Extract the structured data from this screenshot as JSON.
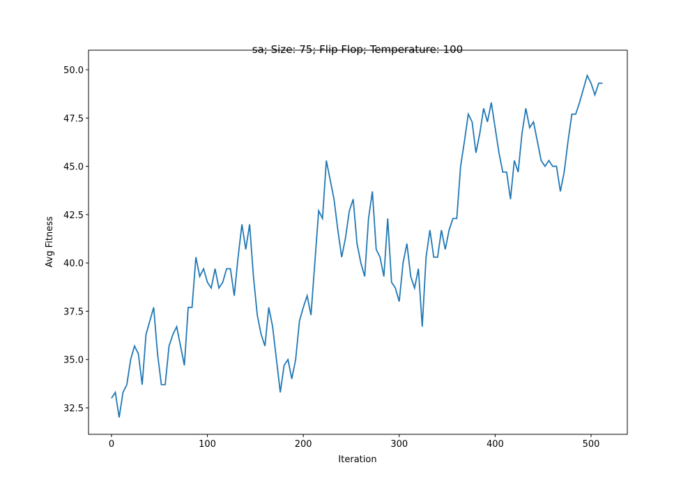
{
  "chart_data": {
    "type": "line",
    "title": "sa; Size: 75; Flip Flop; Temperature: 100",
    "x_label": "Iteration",
    "y_label": "Avg Fitness",
    "x": [
      0,
      4,
      8,
      12,
      16,
      20,
      24,
      28,
      32,
      36,
      40,
      44,
      48,
      52,
      56,
      60,
      64,
      68,
      72,
      76,
      80,
      84,
      88,
      92,
      96,
      100,
      104,
      108,
      112,
      116,
      120,
      124,
      128,
      132,
      136,
      140,
      144,
      148,
      152,
      156,
      160,
      164,
      168,
      172,
      176,
      180,
      184,
      188,
      192,
      196,
      200,
      204,
      208,
      212,
      216,
      220,
      224,
      228,
      232,
      236,
      240,
      244,
      248,
      252,
      256,
      260,
      264,
      268,
      272,
      276,
      280,
      284,
      288,
      292,
      296,
      300,
      304,
      308,
      312,
      316,
      320,
      324,
      328,
      332,
      336,
      340,
      344,
      348,
      352,
      356,
      360,
      364,
      368,
      372,
      376,
      380,
      384,
      388,
      392,
      396,
      400,
      404,
      408,
      412,
      416,
      420,
      424,
      428,
      432,
      436,
      440,
      444,
      448,
      452,
      456,
      460,
      464,
      468,
      472,
      476,
      480,
      484,
      488,
      492,
      496,
      500,
      504,
      508,
      512
    ],
    "series": [
      {
        "name": "Avg Fitness",
        "color": "#1f77b4",
        "values": [
          33.0,
          33.3,
          32.0,
          33.3,
          33.7,
          35.0,
          35.7,
          35.3,
          33.7,
          36.3,
          37.0,
          37.7,
          35.3,
          33.7,
          33.7,
          35.7,
          36.3,
          36.7,
          35.7,
          34.7,
          37.7,
          37.7,
          40.3,
          39.3,
          39.7,
          39.0,
          38.7,
          39.7,
          38.7,
          39.0,
          39.7,
          39.7,
          38.3,
          40.3,
          42.0,
          40.7,
          42.0,
          39.3,
          37.3,
          36.3,
          35.7,
          37.7,
          36.7,
          35.0,
          33.3,
          34.7,
          35.0,
          34.0,
          35.0,
          37.0,
          37.7,
          38.3,
          37.3,
          40.0,
          42.7,
          42.3,
          45.3,
          44.3,
          43.3,
          41.7,
          40.3,
          41.3,
          42.7,
          43.3,
          41.0,
          40.0,
          39.3,
          42.3,
          43.7,
          40.7,
          40.3,
          39.3,
          42.3,
          39.0,
          38.7,
          38.0,
          40.0,
          41.0,
          39.3,
          38.7,
          39.7,
          36.7,
          40.3,
          41.7,
          40.3,
          40.3,
          41.7,
          40.7,
          41.7,
          42.3,
          42.3,
          45.0,
          46.3,
          47.7,
          47.3,
          45.7,
          46.7,
          48.0,
          47.3,
          48.3,
          47.0,
          45.7,
          44.7,
          44.7,
          43.3,
          45.3,
          44.7,
          46.7,
          48.0,
          47.0,
          47.3,
          46.3,
          45.3,
          45.0,
          45.3,
          45.0,
          45.0,
          43.7,
          44.7,
          46.3,
          47.7,
          47.7,
          48.3,
          49.0,
          49.7,
          49.3,
          48.7,
          49.3,
          49.3
        ]
      }
    ],
    "xlim": [
      -23.95,
      537.8
    ],
    "ylim": [
      31.13,
      51.01
    ],
    "xticks": [
      0,
      100,
      200,
      300,
      400,
      500
    ],
    "yticks": [
      32.5,
      {
        "value": 35,
        "label": "35.0"
      },
      37.5,
      {
        "value": 40,
        "label": "40.0"
      },
      42.5,
      {
        "value": 45,
        "label": "45.0"
      },
      47.5,
      {
        "value": 50,
        "label": "50.0"
      }
    ]
  }
}
